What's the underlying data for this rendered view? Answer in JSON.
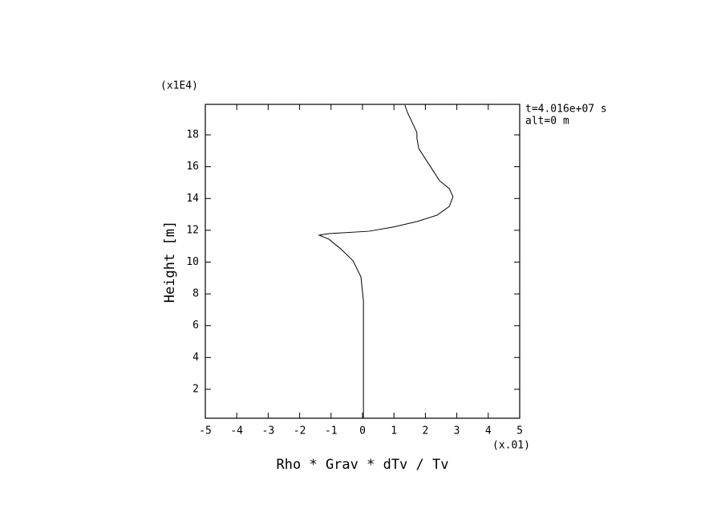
{
  "chart_data": {
    "type": "line",
    "x_label": "Rho * Grav * dTv / Tv",
    "y_label": "Height [m]",
    "x_multiplier": "(x.01)",
    "y_multiplier": "(x1E4)",
    "annotations": [
      "t=4.016e+07 s",
      "alt=0 m"
    ],
    "color": "#000000",
    "x": [
      0.03,
      0.03,
      -0.05,
      -0.3,
      -0.69,
      -1.07,
      -1.38,
      -1.07,
      0.2,
      0.97,
      1.73,
      2.37,
      2.76,
      2.88,
      2.76,
      2.45,
      2.12,
      1.79,
      1.73,
      1.73,
      1.61,
      1.43,
      1.35
    ],
    "y": [
      0.18,
      7.55,
      9.07,
      10.08,
      10.83,
      11.44,
      11.69,
      11.79,
      11.94,
      12.2,
      12.55,
      12.95,
      13.5,
      14.11,
      14.62,
      15.12,
      16.13,
      17.14,
      17.8,
      18.15,
      18.66,
      19.41,
      19.87
    ],
    "xlim": [
      -5,
      5
    ],
    "xticks": [
      -5,
      -4,
      -3,
      -2,
      -1,
      0,
      1,
      2,
      3,
      4,
      5
    ],
    "ylim": [
      0.18,
      19.92
    ],
    "yticks": [
      2,
      4,
      6,
      8,
      10,
      12,
      14,
      16,
      18
    ],
    "grid": false
  }
}
